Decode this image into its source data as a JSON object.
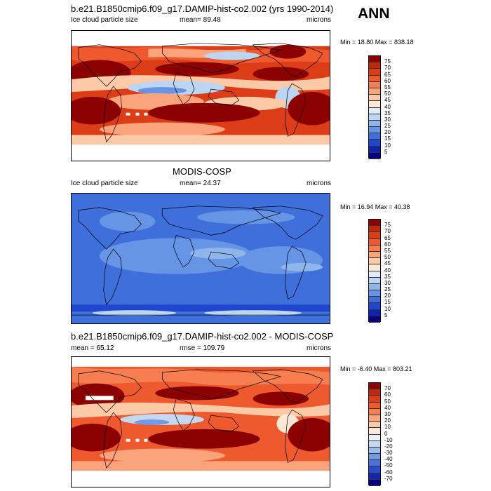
{
  "season": "ANN",
  "panels": [
    {
      "title": "b.e21.B1850cmip6.f09_g17.DAMIP-hist-co2.002 (yrs 1990-2014)",
      "left_label": "Ice cloud particle size",
      "center_label": "mean=  89.48",
      "right_label": "microns",
      "minmax": "Min =  18.80 Max = 838.18",
      "colorbar": {
        "colors": [
          "#8b0000",
          "#c1270c",
          "#dc3d16",
          "#ee5a2e",
          "#f77e50",
          "#fba47c",
          "#fdcaa8",
          "#fde8d6",
          "#e0ecf8",
          "#bcd5f2",
          "#8fb6ec",
          "#6595e4",
          "#3e6fda",
          "#1f46cc",
          "#0d24b2",
          "#07007f"
        ],
        "labels": [
          "75",
          "70",
          "65",
          "60",
          "55",
          "50",
          "45",
          "40",
          "35",
          "30",
          "25",
          "20",
          "15",
          "10",
          "5"
        ]
      }
    },
    {
      "title": "MODIS-COSP",
      "left_label": "Ice cloud particle size",
      "center_label": "mean=  24.37",
      "right_label": "microns",
      "minmax": "Min =  16.94 Max =  40.38",
      "colorbar": {
        "colors": [
          "#8b0000",
          "#c1270c",
          "#dc3d16",
          "#ee5a2e",
          "#f77e50",
          "#fba47c",
          "#fdcaa8",
          "#fde8d6",
          "#e0ecf8",
          "#bcd5f2",
          "#8fb6ec",
          "#6595e4",
          "#3e6fda",
          "#1f46cc",
          "#0d24b2",
          "#07007f"
        ],
        "labels": [
          "75",
          "70",
          "65",
          "60",
          "55",
          "50",
          "45",
          "40",
          "35",
          "30",
          "25",
          "20",
          "15",
          "10",
          "5"
        ]
      }
    },
    {
      "title": "b.e21.B1850cmip6.f09_g17.DAMIP-hist-co2.002 - MODIS-COSP",
      "left_label": "mean =  65.12",
      "center_label": "rmse = 109.79",
      "right_label": "microns",
      "minmax": "Min =  -6.40 Max = 803.21",
      "colorbar": {
        "colors": [
          "#8b0000",
          "#c1270c",
          "#dc3d16",
          "#ee5a2e",
          "#f77e50",
          "#fba47c",
          "#fdcaa8",
          "#fde8d6",
          "#e8f0f8",
          "#c4d8f2",
          "#9cbcec",
          "#7199e4",
          "#4a72da",
          "#2a4bcc",
          "#1426b0",
          "#07007f"
        ],
        "labels": [
          "70",
          "60",
          "50",
          "40",
          "30",
          "20",
          "10",
          "0",
          "-10",
          "-20",
          "-30",
          "-40",
          "-50",
          "-60",
          "-70"
        ]
      }
    }
  ]
}
